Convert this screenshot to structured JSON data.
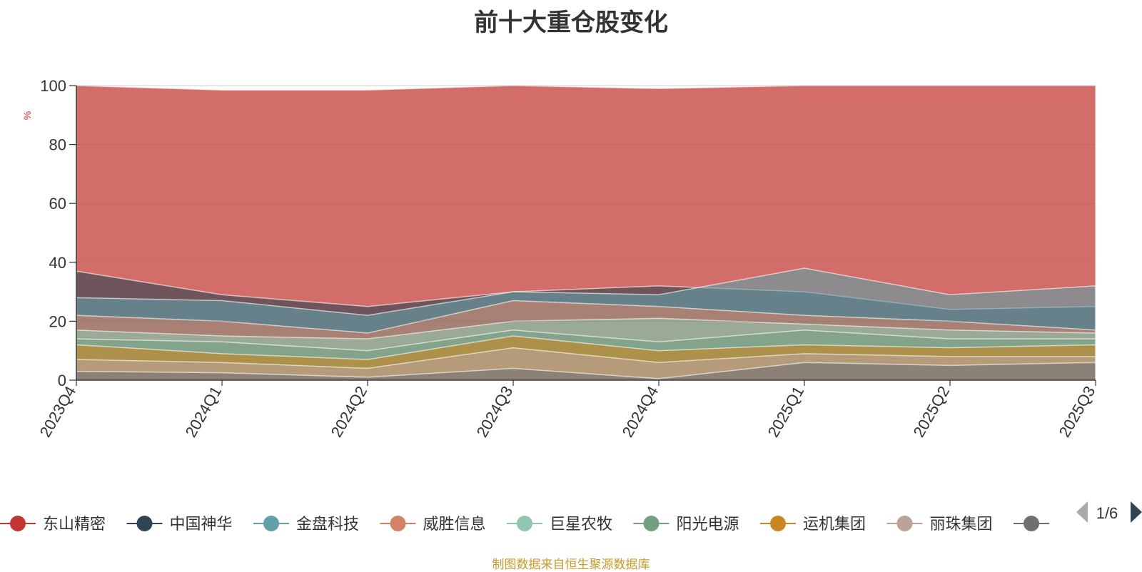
{
  "chart_data": {
    "type": "area",
    "stacked": false,
    "title": "前十大重仓股变化",
    "ylabel": "%",
    "ylim": [
      0,
      100
    ],
    "yticks": [
      0,
      20,
      40,
      60,
      80,
      100
    ],
    "grid": true,
    "legend_position": "bottom",
    "legend_page": "1/6",
    "x": [
      "2023Q4",
      "2024Q1",
      "2024Q2",
      "2024Q3",
      "2024Q4",
      "2025Q1",
      "2025Q2",
      "2025Q3"
    ],
    "series": [
      {
        "name": "东山精密",
        "color": "#c23531",
        "values": [
          100,
          98.5,
          98.5,
          100,
          99,
          100,
          100,
          100
        ]
      },
      {
        "name": "中国神华",
        "color": "#2f4554",
        "values": [
          37,
          29,
          25,
          30,
          32,
          30,
          24,
          25
        ]
      },
      {
        "name": "金盘科技",
        "color": "#61a0a8",
        "values": [
          28,
          27,
          22,
          30,
          29,
          38,
          29,
          32
        ]
      },
      {
        "name": "威胜信息",
        "color": "#d48265",
        "values": [
          22,
          20,
          16,
          27,
          25,
          22,
          20,
          17
        ]
      },
      {
        "name": "巨星农牧",
        "color": "#91c7ae",
        "values": [
          17,
          15,
          14,
          20,
          21,
          19,
          17,
          16
        ]
      },
      {
        "name": "阳光电源",
        "color": "#749f83",
        "values": [
          14,
          13,
          10,
          17,
          13,
          17,
          14,
          14
        ]
      },
      {
        "name": "运机集团",
        "color": "#ca8622",
        "values": [
          12,
          9,
          7,
          15,
          10,
          12,
          11,
          12
        ]
      },
      {
        "name": "丽珠集团",
        "color": "#bda29a",
        "values": [
          7,
          6,
          4,
          11,
          6,
          9,
          8,
          8
        ]
      },
      {
        "name": "",
        "color": "#6e7074",
        "values": [
          3,
          2.5,
          1,
          4,
          0.5,
          6,
          5,
          6
        ]
      }
    ]
  },
  "source_note": "制图数据来自恒生聚源数据库"
}
